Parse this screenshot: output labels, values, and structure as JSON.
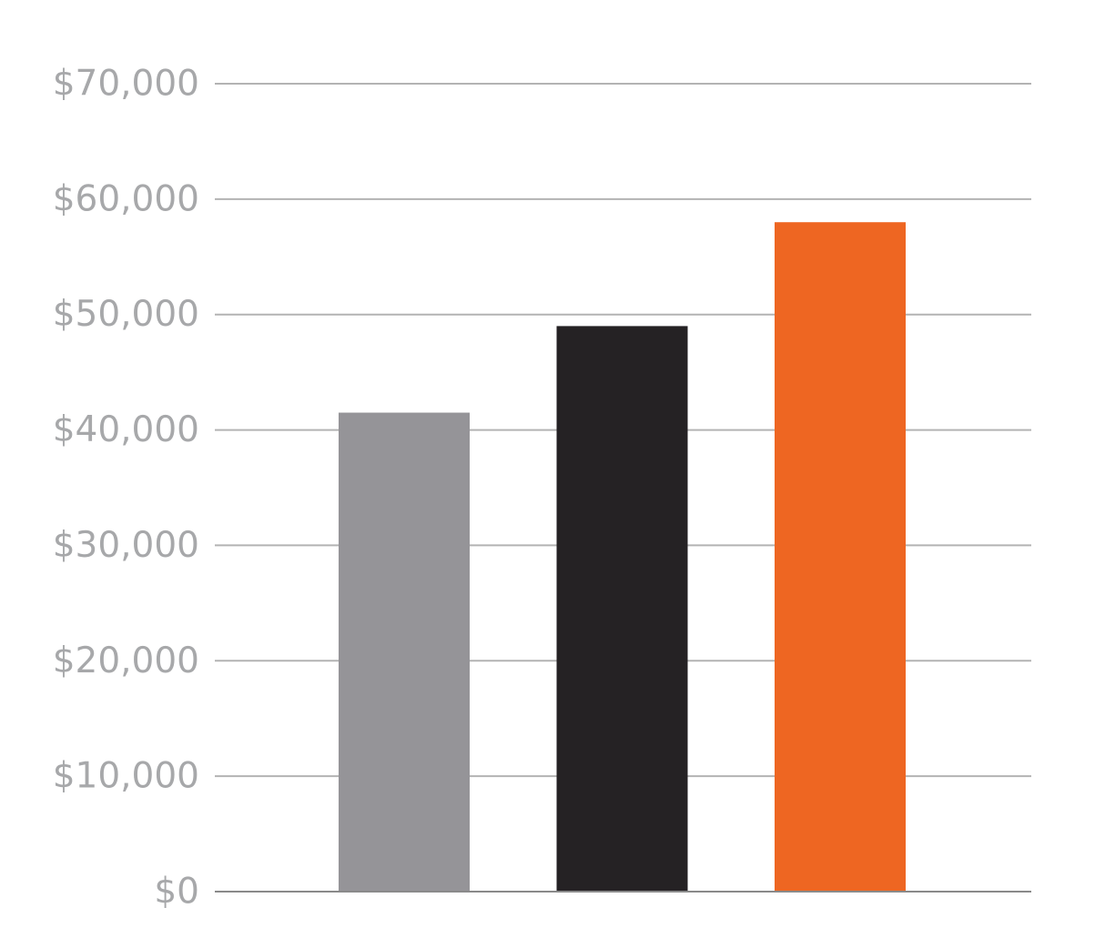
{
  "chart_data": {
    "type": "bar",
    "title": "",
    "xlabel": "",
    "ylabel": "",
    "categories": [
      "",
      "",
      ""
    ],
    "values": [
      41500,
      49000,
      58000
    ],
    "colors": [
      "#959498",
      "#252224",
      "#ee6622"
    ],
    "ylim": [
      0,
      70000
    ],
    "yticks": [
      0,
      10000,
      20000,
      30000,
      40000,
      50000,
      60000,
      70000
    ],
    "ytick_labels": [
      "$0",
      "$10,000",
      "$20,000",
      "$30,000",
      "$40,000",
      "$50,000",
      "$60,000",
      "$70,000"
    ],
    "grid": true,
    "legend": "none"
  }
}
